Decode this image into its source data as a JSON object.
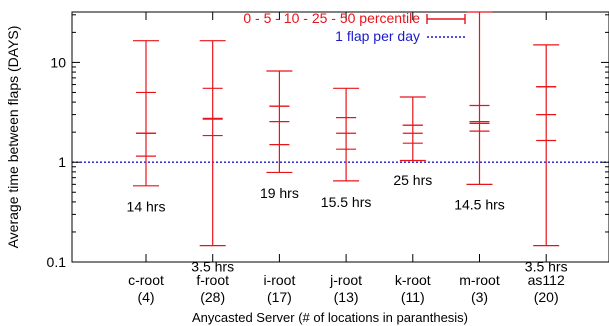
{
  "chart_data": {
    "type": "box",
    "title": "",
    "xlabel": "Anycasted Server (# of locations in paranthesis)",
    "ylabel": "Average time between flaps (DAYS)",
    "yscale": "log",
    "ylim": [
      0.1,
      32
    ],
    "yticks": [
      {
        "value": 0.1,
        "label": "0.1"
      },
      {
        "value": 1,
        "label": "1"
      },
      {
        "value": 10,
        "label": "10"
      }
    ],
    "grid": false,
    "legend": {
      "position": "top-right",
      "entries": [
        {
          "label": "0 - 5 - 10 - 25 - 50 percentile",
          "color": "#e8141b",
          "style": "errorbar"
        },
        {
          "label": "1 flap per day",
          "color": "#1a1acd",
          "style": "dotted-line"
        }
      ]
    },
    "reference_line": {
      "name": "1 flap per day",
      "value": 1
    },
    "categories": [
      {
        "name": "c-root",
        "locations": "(4)",
        "p0": 0.58,
        "p5": 1.15,
        "p10": 1.95,
        "p25": 1.95,
        "p50": 5.0,
        "top": 16.5,
        "annotation": "14 hrs",
        "ann_value": 0.36
      },
      {
        "name": "f-root",
        "locations": "(28)",
        "p0": 0.146,
        "p5": 1.85,
        "p10": 2.7,
        "p25": 2.75,
        "p50": 5.5,
        "top": 16.5,
        "annotation": "3.5 hrs",
        "ann_value": 0.09
      },
      {
        "name": "i-root",
        "locations": "(17)",
        "p0": 0.79,
        "p5": 1.5,
        "p10": 2.55,
        "p25": 3.65,
        "p50": 3.65,
        "top": 8.2,
        "annotation": "19 hrs",
        "ann_value": 0.49
      },
      {
        "name": "j-root",
        "locations": "(13)",
        "p0": 0.65,
        "p5": 1.35,
        "p10": 1.95,
        "p25": 2.8,
        "p50": 2.8,
        "top": 5.5,
        "annotation": "15.5 hrs",
        "ann_value": 0.4
      },
      {
        "name": "k-root",
        "locations": "(11)",
        "p0": 1.04,
        "p5": 1.55,
        "p10": 1.95,
        "p25": 2.35,
        "p50": 2.35,
        "top": 4.5,
        "annotation": "25 hrs",
        "ann_value": 0.66
      },
      {
        "name": "m-root",
        "locations": "(3)",
        "p0": 0.6,
        "p5": 2.05,
        "p10": 2.45,
        "p25": 2.55,
        "p50": 3.7,
        "top": 32,
        "annotation": "14.5 hrs",
        "ann_value": 0.375
      },
      {
        "name": "as112",
        "locations": "(20)",
        "p0": 0.146,
        "p5": 1.65,
        "p10": 3.0,
        "p25": 5.7,
        "p50": 5.7,
        "top": 15.0,
        "annotation": "3.5 hrs",
        "ann_value": 0.09
      }
    ],
    "colors": {
      "series": "#e8141b",
      "reference": "#1a1acd",
      "axis": "#000000",
      "text": "#000000"
    }
  }
}
